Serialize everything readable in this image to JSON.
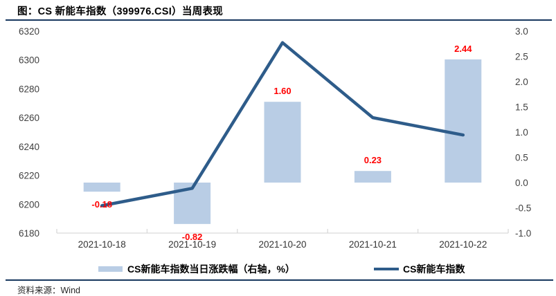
{
  "header": {
    "title": "图：CS 新能车指数（399976.CSI）当周表现"
  },
  "footer": {
    "source_label": "资料来源：Wind"
  },
  "colors": {
    "rule": "#17375e",
    "bar_fill": "#b9cde5",
    "line_stroke": "#2e5c8a",
    "data_label": "#ff0000",
    "axis_line": "#d9d9d9",
    "tick_text": "#404040"
  },
  "chart_data": {
    "type": "combo",
    "title": "图：CS 新能车指数（399976.CSI）当周表现",
    "categories": [
      "2021-10-18",
      "2021-10-19",
      "2021-10-20",
      "2021-10-21",
      "2021-10-22"
    ],
    "series": [
      {
        "name": "CS新能车指数当日涨跌幅（右轴，%）",
        "type": "bar",
        "axis": "right",
        "values": [
          -0.18,
          -0.82,
          1.6,
          0.23,
          2.44
        ],
        "data_labels": [
          "-0.18",
          "-0.82",
          "1.60",
          "0.23",
          "2.44"
        ],
        "color": "#b9cde5",
        "label_color": "#ff0000"
      },
      {
        "name": "CS新能车指数",
        "type": "line",
        "axis": "left",
        "values": [
          6199,
          6211,
          6312,
          6260,
          6248
        ],
        "color": "#2e5c8a"
      }
    ],
    "left_axis": {
      "min": 6180,
      "max": 6320,
      "step": 20,
      "ticks": [
        "6320",
        "6300",
        "6280",
        "6260",
        "6240",
        "6220",
        "6200",
        "6180"
      ]
    },
    "right_axis": {
      "min": -1.0,
      "max": 3.0,
      "step": 0.5,
      "ticks": [
        "3.0",
        "2.5",
        "2.0",
        "1.5",
        "1.0",
        "0.5",
        "0.0",
        "-0.5",
        "-1.0"
      ]
    },
    "legend_position": "bottom",
    "grid": false,
    "source": "Wind"
  }
}
